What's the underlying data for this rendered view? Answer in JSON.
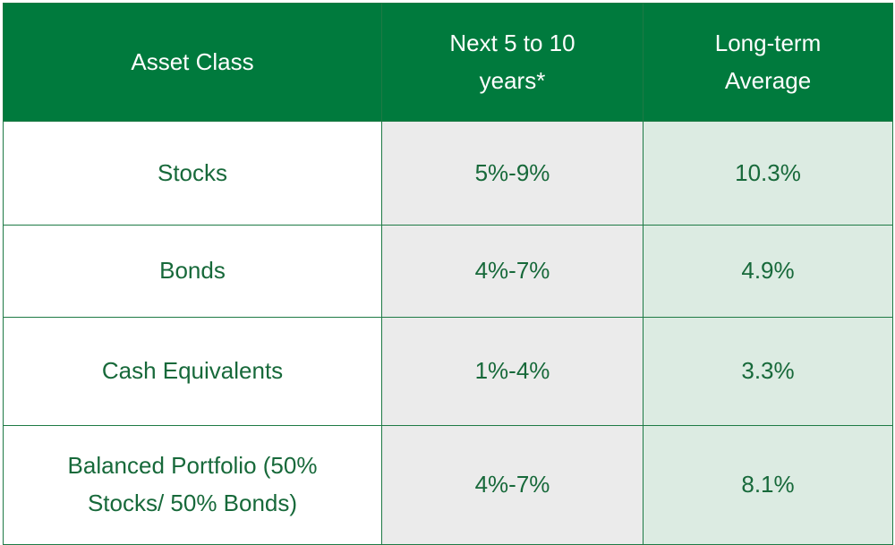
{
  "table": {
    "header": [
      "Asset Class",
      "Next 5 to 10 years*",
      "Long-term Average"
    ],
    "rows": [
      [
        "Stocks",
        "5%-9%",
        "10.3%"
      ],
      [
        "Bonds",
        "4%-7%",
        "4.9%"
      ],
      [
        "Cash Equivalents",
        "1%-4%",
        "3.3%"
      ],
      [
        "Balanced Portfolio (50% Stocks/ 50% Bonds)",
        "4%-7%",
        "8.1%"
      ]
    ]
  }
}
